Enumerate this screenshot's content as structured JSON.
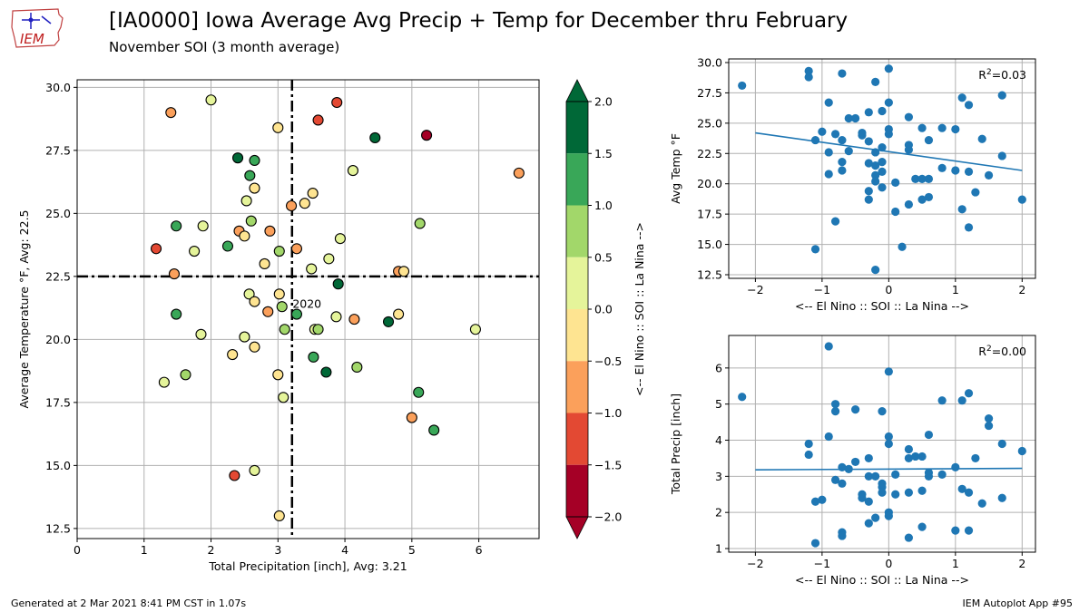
{
  "header": {
    "title": "[IA0000] Iowa Average Avg Precip + Temp for December thru February",
    "subtitle": "November SOI (3 month average)",
    "logo_text": "IEM"
  },
  "footer": {
    "generated": "Generated at 2 Mar 2021 8:41 PM CST in 1.07s",
    "app": "IEM Autoplot App #95"
  },
  "colors": {
    "regression": "#1f77b4",
    "points": "#1f77b4",
    "avg_lines": "#000000",
    "grid": "#b0b0b0"
  },
  "chart_data": [
    {
      "type": "scatter",
      "name": "main",
      "xlabel": "Total Precipitation [inch], Avg: 3.21",
      "ylabel": "Average Temperature  °F, Avg: 22.5",
      "xlim": [
        0,
        6.9
      ],
      "ylim": [
        12.1,
        30.3
      ],
      "xticks": [
        0,
        1,
        2,
        3,
        4,
        5,
        6
      ],
      "yticks": [
        12.5,
        15.0,
        17.5,
        20.0,
        22.5,
        25.0,
        27.5,
        30.0
      ],
      "grid": true,
      "avg_x": 3.21,
      "avg_y": 22.5,
      "annotation": {
        "label": "2020",
        "x": 3.27,
        "y": 21.4
      },
      "colorbar": {
        "label": "<-- El Nino :: SOI :: La Nina -->",
        "min": -2.0,
        "max": 2.0,
        "ticks": [
          "2.0",
          "1.5",
          "1.0",
          "0.5",
          "0.0",
          "−0.5",
          "−1.0",
          "−1.5",
          "−2.0"
        ],
        "bins": [
          {
            "from": 1.5,
            "to": 2.0,
            "color": "#006837"
          },
          {
            "from": 1.0,
            "to": 1.5,
            "color": "#39a758"
          },
          {
            "from": 0.5,
            "to": 1.0,
            "color": "#a2d76a"
          },
          {
            "from": 0.0,
            "to": 0.5,
            "color": "#e5f49a"
          },
          {
            "from": -0.5,
            "to": 0.0,
            "color": "#fee491"
          },
          {
            "from": -1.0,
            "to": -0.5,
            "color": "#fba05b"
          },
          {
            "from": -1.5,
            "to": -1.0,
            "color": "#e34933"
          },
          {
            "from": -2.0,
            "to": -1.5,
            "color": "#a50026"
          }
        ]
      },
      "points": [
        {
          "x": 1.4,
          "y": 29.0,
          "soi": -0.7
        },
        {
          "x": 2.0,
          "y": 29.5,
          "soi": 0.3
        },
        {
          "x": 3.0,
          "y": 28.4,
          "soi": -0.2
        },
        {
          "x": 3.6,
          "y": 28.7,
          "soi": -1.2
        },
        {
          "x": 3.88,
          "y": 29.4,
          "soi": -1.2
        },
        {
          "x": 4.45,
          "y": 28.0,
          "soi": 1.6
        },
        {
          "x": 5.22,
          "y": 28.1,
          "soi": -1.8
        },
        {
          "x": 2.4,
          "y": 27.2,
          "soi": 1.6
        },
        {
          "x": 2.65,
          "y": 27.1,
          "soi": 1.2
        },
        {
          "x": 4.12,
          "y": 26.7,
          "soi": 0.3
        },
        {
          "x": 6.6,
          "y": 26.6,
          "soi": -0.7
        },
        {
          "x": 2.58,
          "y": 26.5,
          "soi": 1.2
        },
        {
          "x": 2.65,
          "y": 26.0,
          "soi": -0.2
        },
        {
          "x": 3.52,
          "y": 25.8,
          "soi": -0.2
        },
        {
          "x": 2.53,
          "y": 25.5,
          "soi": 0.2
        },
        {
          "x": 3.2,
          "y": 25.3,
          "soi": -0.8
        },
        {
          "x": 3.4,
          "y": 25.4,
          "soi": -0.2
        },
        {
          "x": 1.48,
          "y": 24.5,
          "soi": 1.2
        },
        {
          "x": 1.88,
          "y": 24.5,
          "soi": 0.3
        },
        {
          "x": 2.6,
          "y": 24.7,
          "soi": 0.8
        },
        {
          "x": 2.42,
          "y": 24.3,
          "soi": -0.8
        },
        {
          "x": 2.5,
          "y": 24.1,
          "soi": -0.2
        },
        {
          "x": 2.88,
          "y": 24.3,
          "soi": -0.7
        },
        {
          "x": 3.93,
          "y": 24.0,
          "soi": 0.3
        },
        {
          "x": 5.12,
          "y": 24.6,
          "soi": 0.8
        },
        {
          "x": 1.18,
          "y": 23.6,
          "soi": -1.3
        },
        {
          "x": 1.75,
          "y": 23.5,
          "soi": 0.3
        },
        {
          "x": 2.25,
          "y": 23.7,
          "soi": 1.2
        },
        {
          "x": 3.02,
          "y": 23.5,
          "soi": 0.8
        },
        {
          "x": 3.28,
          "y": 23.6,
          "soi": -0.8
        },
        {
          "x": 3.76,
          "y": 23.2,
          "soi": 0.3
        },
        {
          "x": 2.8,
          "y": 23.0,
          "soi": -0.2
        },
        {
          "x": 1.45,
          "y": 22.6,
          "soi": -0.8
        },
        {
          "x": 3.5,
          "y": 22.8,
          "soi": 0.3
        },
        {
          "x": 3.9,
          "y": 22.2,
          "soi": 1.6
        },
        {
          "x": 4.8,
          "y": 22.7,
          "soi": -0.7
        },
        {
          "x": 4.88,
          "y": 22.7,
          "soi": -0.2
        },
        {
          "x": 2.57,
          "y": 21.8,
          "soi": 0.3
        },
        {
          "x": 2.65,
          "y": 21.5,
          "soi": -0.2
        },
        {
          "x": 3.02,
          "y": 21.8,
          "soi": -0.2
        },
        {
          "x": 3.06,
          "y": 21.3,
          "soi": 0.8
        },
        {
          "x": 1.48,
          "y": 21.0,
          "soi": 1.2
        },
        {
          "x": 2.85,
          "y": 21.1,
          "soi": -0.8
        },
        {
          "x": 3.28,
          "y": 21.0,
          "soi": 1.2
        },
        {
          "x": 3.87,
          "y": 20.9,
          "soi": 0.3
        },
        {
          "x": 4.14,
          "y": 20.8,
          "soi": -0.8
        },
        {
          "x": 4.65,
          "y": 20.7,
          "soi": 1.6
        },
        {
          "x": 4.8,
          "y": 21.0,
          "soi": -0.2
        },
        {
          "x": 3.1,
          "y": 20.4,
          "soi": 0.8
        },
        {
          "x": 3.55,
          "y": 20.4,
          "soi": 0.3
        },
        {
          "x": 3.6,
          "y": 20.4,
          "soi": 0.8
        },
        {
          "x": 5.95,
          "y": 20.4,
          "soi": 0.3
        },
        {
          "x": 1.85,
          "y": 20.2,
          "soi": 0.3
        },
        {
          "x": 2.5,
          "y": 20.1,
          "soi": 0.3
        },
        {
          "x": 2.65,
          "y": 19.7,
          "soi": -0.2
        },
        {
          "x": 2.32,
          "y": 19.4,
          "soi": -0.2
        },
        {
          "x": 3.53,
          "y": 19.3,
          "soi": 1.2
        },
        {
          "x": 3.0,
          "y": 18.6,
          "soi": -0.2
        },
        {
          "x": 3.72,
          "y": 18.7,
          "soi": 1.6
        },
        {
          "x": 4.18,
          "y": 18.9,
          "soi": 0.8
        },
        {
          "x": 1.62,
          "y": 18.6,
          "soi": 0.8
        },
        {
          "x": 1.3,
          "y": 18.3,
          "soi": 0.3
        },
        {
          "x": 3.08,
          "y": 17.7,
          "soi": 0.3
        },
        {
          "x": 5.1,
          "y": 17.9,
          "soi": 1.2
        },
        {
          "x": 5.0,
          "y": 16.9,
          "soi": -0.8
        },
        {
          "x": 5.33,
          "y": 16.4,
          "soi": 1.2
        },
        {
          "x": 2.35,
          "y": 14.6,
          "soi": -1.3
        },
        {
          "x": 2.65,
          "y": 14.8,
          "soi": 0.3
        },
        {
          "x": 3.02,
          "y": 13.0,
          "soi": -0.2
        }
      ]
    },
    {
      "type": "scatter",
      "name": "soi-vs-temp",
      "xlabel": "<-- El Nino :: SOI :: La Nina -->",
      "ylabel": "Avg Temp  °F",
      "xlim": [
        -2.4,
        2.2
      ],
      "ylim": [
        12.2,
        30.3
      ],
      "xticks": [
        -2,
        -1,
        0,
        1,
        2
      ],
      "yticks": [
        12.5,
        15.0,
        17.5,
        20.0,
        22.5,
        25.0,
        27.5,
        30.0
      ],
      "grid": true,
      "r2_label": "R",
      "r2_sup": "2",
      "r2_value": "=0.03",
      "fit": {
        "x1": -2.0,
        "y1": 24.2,
        "x2": 2.0,
        "y2": 21.1
      },
      "points": [
        {
          "x": -2.2,
          "y": 28.1
        },
        {
          "x": -1.2,
          "y": 29.3
        },
        {
          "x": -1.2,
          "y": 28.8
        },
        {
          "x": -0.7,
          "y": 29.1
        },
        {
          "x": -0.2,
          "y": 28.4
        },
        {
          "x": 0.0,
          "y": 29.5
        },
        {
          "x": -0.9,
          "y": 26.7
        },
        {
          "x": -0.1,
          "y": 26.0
        },
        {
          "x": 0.0,
          "y": 26.7
        },
        {
          "x": 1.1,
          "y": 27.1
        },
        {
          "x": 1.2,
          "y": 26.5
        },
        {
          "x": 1.7,
          "y": 27.3
        },
        {
          "x": -0.6,
          "y": 25.4
        },
        {
          "x": -0.5,
          "y": 25.4
        },
        {
          "x": -0.3,
          "y": 25.9
        },
        {
          "x": 0.3,
          "y": 25.5
        },
        {
          "x": -1.0,
          "y": 24.3
        },
        {
          "x": -0.8,
          "y": 24.1
        },
        {
          "x": -0.4,
          "y": 24.2
        },
        {
          "x": 0.0,
          "y": 24.1
        },
        {
          "x": 0.0,
          "y": 24.5
        },
        {
          "x": 0.5,
          "y": 24.6
        },
        {
          "x": 0.8,
          "y": 24.6
        },
        {
          "x": 1.0,
          "y": 24.5
        },
        {
          "x": -1.1,
          "y": 23.6
        },
        {
          "x": -0.7,
          "y": 23.6
        },
        {
          "x": -0.4,
          "y": 24.0
        },
        {
          "x": -0.3,
          "y": 23.5
        },
        {
          "x": -0.1,
          "y": 23.0
        },
        {
          "x": 0.3,
          "y": 23.2
        },
        {
          "x": 0.3,
          "y": 22.8
        },
        {
          "x": 0.6,
          "y": 23.6
        },
        {
          "x": 1.4,
          "y": 23.7
        },
        {
          "x": -0.9,
          "y": 22.6
        },
        {
          "x": -0.6,
          "y": 22.7
        },
        {
          "x": -0.2,
          "y": 22.6
        },
        {
          "x": 1.7,
          "y": 22.3
        },
        {
          "x": -0.7,
          "y": 21.8
        },
        {
          "x": -0.3,
          "y": 21.7
        },
        {
          "x": -0.2,
          "y": 21.5
        },
        {
          "x": -0.1,
          "y": 21.8
        },
        {
          "x": -0.1,
          "y": 21.0
        },
        {
          "x": 0.8,
          "y": 21.3
        },
        {
          "x": 1.0,
          "y": 21.1
        },
        {
          "x": 1.2,
          "y": 21.0
        },
        {
          "x": -0.9,
          "y": 20.8
        },
        {
          "x": -0.7,
          "y": 21.1
        },
        {
          "x": -0.2,
          "y": 20.7
        },
        {
          "x": 0.4,
          "y": 20.4
        },
        {
          "x": 0.5,
          "y": 20.4
        },
        {
          "x": 0.6,
          "y": 20.4
        },
        {
          "x": 1.5,
          "y": 20.7
        },
        {
          "x": -0.2,
          "y": 20.2
        },
        {
          "x": 0.1,
          "y": 20.1
        },
        {
          "x": -0.1,
          "y": 19.7
        },
        {
          "x": -0.3,
          "y": 19.4
        },
        {
          "x": 1.3,
          "y": 19.3
        },
        {
          "x": -0.3,
          "y": 18.7
        },
        {
          "x": 0.5,
          "y": 18.7
        },
        {
          "x": 0.6,
          "y": 18.9
        },
        {
          "x": 2.0,
          "y": 18.7
        },
        {
          "x": 0.3,
          "y": 18.3
        },
        {
          "x": 1.1,
          "y": 17.9
        },
        {
          "x": 0.1,
          "y": 17.7
        },
        {
          "x": -0.8,
          "y": 16.9
        },
        {
          "x": 1.2,
          "y": 16.4
        },
        {
          "x": -1.1,
          "y": 14.6
        },
        {
          "x": 0.2,
          "y": 14.8
        },
        {
          "x": -0.2,
          "y": 12.9
        }
      ]
    },
    {
      "type": "scatter",
      "name": "soi-vs-precip",
      "xlabel": "<-- El Nino :: SOI :: La Nina -->",
      "ylabel": "Total Precip [inch]",
      "xlim": [
        -2.4,
        2.2
      ],
      "ylim": [
        0.9,
        6.9
      ],
      "xticks": [
        -2,
        -1,
        0,
        1,
        2
      ],
      "yticks": [
        1,
        2,
        3,
        4,
        5,
        6
      ],
      "grid": true,
      "r2_label": "R",
      "r2_sup": "2",
      "r2_value": "=0.00",
      "fit": {
        "x1": -2.0,
        "y1": 3.18,
        "x2": 2.0,
        "y2": 3.22
      },
      "points": [
        {
          "x": -2.2,
          "y": 5.2
        },
        {
          "x": -0.9,
          "y": 6.6
        },
        {
          "x": 0.0,
          "y": 5.9
        },
        {
          "x": -0.8,
          "y": 5.0
        },
        {
          "x": -0.8,
          "y": 4.8
        },
        {
          "x": -0.5,
          "y": 4.85
        },
        {
          "x": -0.1,
          "y": 4.8
        },
        {
          "x": 0.8,
          "y": 5.1
        },
        {
          "x": 1.1,
          "y": 5.1
        },
        {
          "x": 1.2,
          "y": 5.3
        },
        {
          "x": 1.5,
          "y": 4.6
        },
        {
          "x": 1.5,
          "y": 4.4
        },
        {
          "x": -0.9,
          "y": 4.1
        },
        {
          "x": 0.0,
          "y": 4.1
        },
        {
          "x": 0.0,
          "y": 3.9
        },
        {
          "x": 0.6,
          "y": 4.15
        },
        {
          "x": -1.2,
          "y": 3.9
        },
        {
          "x": -1.2,
          "y": 3.6
        },
        {
          "x": 1.7,
          "y": 3.9
        },
        {
          "x": 2.0,
          "y": 3.7
        },
        {
          "x": 0.3,
          "y": 3.75
        },
        {
          "x": 0.3,
          "y": 3.5
        },
        {
          "x": 0.4,
          "y": 3.55
        },
        {
          "x": 0.5,
          "y": 3.55
        },
        {
          "x": -0.3,
          "y": 3.5
        },
        {
          "x": -0.5,
          "y": 3.4
        },
        {
          "x": 1.3,
          "y": 3.5
        },
        {
          "x": -0.7,
          "y": 3.25
        },
        {
          "x": -0.6,
          "y": 3.2
        },
        {
          "x": 1.0,
          "y": 3.25
        },
        {
          "x": -0.3,
          "y": 3.0
        },
        {
          "x": -0.2,
          "y": 3.0
        },
        {
          "x": 0.1,
          "y": 3.05
        },
        {
          "x": 0.6,
          "y": 3.1
        },
        {
          "x": 0.6,
          "y": 3.0
        },
        {
          "x": 0.8,
          "y": 3.05
        },
        {
          "x": -0.8,
          "y": 2.9
        },
        {
          "x": -0.7,
          "y": 2.8
        },
        {
          "x": -0.1,
          "y": 2.8
        },
        {
          "x": -0.1,
          "y": 2.7
        },
        {
          "x": -0.1,
          "y": 2.55
        },
        {
          "x": 0.3,
          "y": 2.55
        },
        {
          "x": 0.5,
          "y": 2.6
        },
        {
          "x": 1.1,
          "y": 2.65
        },
        {
          "x": 1.2,
          "y": 2.55
        },
        {
          "x": -0.4,
          "y": 2.5
        },
        {
          "x": -0.4,
          "y": 2.4
        },
        {
          "x": -0.3,
          "y": 2.3
        },
        {
          "x": 0.1,
          "y": 2.5
        },
        {
          "x": 1.4,
          "y": 2.25
        },
        {
          "x": 1.7,
          "y": 2.4
        },
        {
          "x": -1.1,
          "y": 2.3
        },
        {
          "x": -1.0,
          "y": 2.35
        },
        {
          "x": 0.0,
          "y": 2.0
        },
        {
          "x": 0.0,
          "y": 1.9
        },
        {
          "x": -0.2,
          "y": 1.85
        },
        {
          "x": -0.3,
          "y": 1.7
        },
        {
          "x": 0.5,
          "y": 1.6
        },
        {
          "x": 1.0,
          "y": 1.5
        },
        {
          "x": 1.2,
          "y": 1.5
        },
        {
          "x": -0.7,
          "y": 1.45
        },
        {
          "x": -0.7,
          "y": 1.35
        },
        {
          "x": 0.3,
          "y": 1.3
        },
        {
          "x": -1.1,
          "y": 1.15
        }
      ]
    }
  ]
}
